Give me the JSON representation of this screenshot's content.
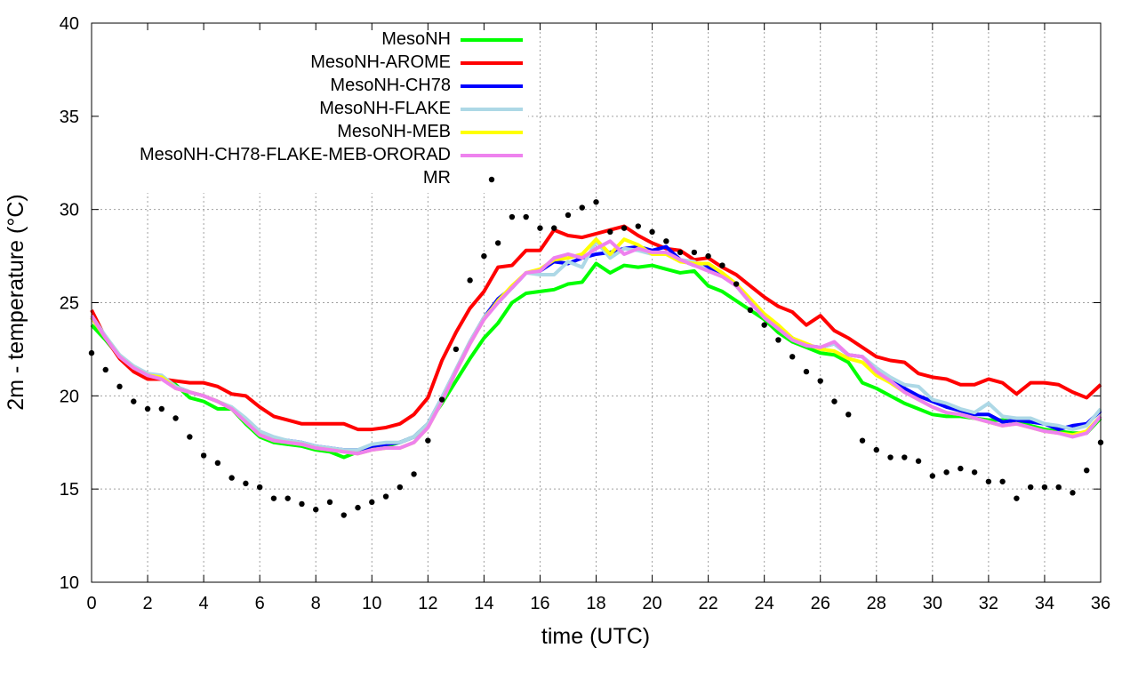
{
  "chart_data": {
    "type": "line",
    "title": "",
    "xlabel": "time (UTC)",
    "ylabel": "2m - temperature (°C)",
    "xlim": [
      0,
      36
    ],
    "ylim": [
      10,
      40
    ],
    "xticks": [
      0,
      2,
      4,
      6,
      8,
      10,
      12,
      14,
      16,
      18,
      20,
      22,
      24,
      26,
      28,
      30,
      32,
      34,
      36
    ],
    "yticks": [
      10,
      15,
      20,
      25,
      30,
      35,
      40
    ],
    "grid": true,
    "legend_position": "top-left",
    "x": [
      0,
      0.5,
      1,
      1.5,
      2,
      2.5,
      3,
      3.5,
      4,
      4.5,
      5,
      5.5,
      6,
      6.5,
      7,
      7.5,
      8,
      8.5,
      9,
      9.5,
      10,
      10.5,
      11,
      11.5,
      12,
      12.5,
      13,
      13.5,
      14,
      14.5,
      15,
      15.5,
      16,
      16.5,
      17,
      17.5,
      18,
      18.5,
      19,
      19.5,
      20,
      20.5,
      21,
      21.5,
      22,
      22.5,
      23,
      23.5,
      24,
      24.5,
      25,
      25.5,
      26,
      26.5,
      27,
      27.5,
      28,
      28.5,
      29,
      29.5,
      30,
      30.5,
      31,
      31.5,
      32,
      32.5,
      33,
      33.5,
      34,
      34.5,
      35,
      35.5,
      36
    ],
    "series": [
      {
        "name": "MesoNH",
        "color": "#00ff00",
        "style": "line",
        "values": [
          23.8,
          23.0,
          22.1,
          21.5,
          21.1,
          21.0,
          20.6,
          19.9,
          19.7,
          19.3,
          19.3,
          18.5,
          17.8,
          17.5,
          17.4,
          17.3,
          17.1,
          17.0,
          16.7,
          17.0,
          17.2,
          17.3,
          17.5,
          17.8,
          18.5,
          19.6,
          20.8,
          22.0,
          23.1,
          23.9,
          25.0,
          25.5,
          25.6,
          25.7,
          26.0,
          26.1,
          27.1,
          26.6,
          27.0,
          26.9,
          27.0,
          26.8,
          26.6,
          26.7,
          25.9,
          25.6,
          25.1,
          24.6,
          24.1,
          23.4,
          22.9,
          22.6,
          22.3,
          22.2,
          21.8,
          20.7,
          20.4,
          20.0,
          19.6,
          19.3,
          19.0,
          18.9,
          18.9,
          18.8,
          18.7,
          18.7,
          18.6,
          18.4,
          18.2,
          18.1,
          18.0,
          18.0,
          18.8
        ]
      },
      {
        "name": "MesoNH-AROME",
        "color": "#ff0000",
        "style": "line",
        "values": [
          24.6,
          23.1,
          22.0,
          21.3,
          20.9,
          20.9,
          20.8,
          20.7,
          20.7,
          20.5,
          20.1,
          20.0,
          19.4,
          18.9,
          18.7,
          18.5,
          18.5,
          18.5,
          18.5,
          18.2,
          18.2,
          18.3,
          18.5,
          19.0,
          19.9,
          21.9,
          23.4,
          24.7,
          25.6,
          26.9,
          27.0,
          27.8,
          27.8,
          28.9,
          28.6,
          28.5,
          28.7,
          28.9,
          29.1,
          28.6,
          28.2,
          27.9,
          27.8,
          27.3,
          27.4,
          26.9,
          26.5,
          25.9,
          25.3,
          24.8,
          24.5,
          23.8,
          24.3,
          23.5,
          23.1,
          22.6,
          22.1,
          21.9,
          21.8,
          21.2,
          21.0,
          20.9,
          20.6,
          20.6,
          20.9,
          20.7,
          20.1,
          20.7,
          20.7,
          20.6,
          20.2,
          19.9,
          20.6
        ]
      },
      {
        "name": "MesoNH-CH78",
        "color": "#0000ff",
        "style": "line",
        "values": [
          24.2,
          23.1,
          22.1,
          21.5,
          21.1,
          21.0,
          20.5,
          20.2,
          20.0,
          19.7,
          19.3,
          18.7,
          18.0,
          17.7,
          17.6,
          17.5,
          17.3,
          17.2,
          17.1,
          17.1,
          17.3,
          17.4,
          17.5,
          17.8,
          18.5,
          19.9,
          21.4,
          22.9,
          24.2,
          25.2,
          25.8,
          26.6,
          26.7,
          27.2,
          27.1,
          27.4,
          27.6,
          27.7,
          27.9,
          28.0,
          27.8,
          28.0,
          27.3,
          27.0,
          26.9,
          26.5,
          25.9,
          25.1,
          24.3,
          23.7,
          23.1,
          22.7,
          22.6,
          22.8,
          22.2,
          22.1,
          21.4,
          20.9,
          20.4,
          20.0,
          19.7,
          19.4,
          19.2,
          19.0,
          19.0,
          18.6,
          18.7,
          18.6,
          18.5,
          18.2,
          18.4,
          18.5,
          19.2
        ]
      },
      {
        "name": "MesoNH-FLAKE",
        "color": "#add8e6",
        "style": "line",
        "values": [
          24.3,
          23.2,
          22.2,
          21.6,
          21.2,
          21.1,
          20.5,
          20.2,
          20.0,
          19.7,
          19.4,
          18.8,
          18.1,
          17.8,
          17.6,
          17.5,
          17.3,
          17.2,
          17.1,
          17.1,
          17.4,
          17.5,
          17.5,
          17.8,
          18.5,
          19.9,
          21.4,
          22.9,
          24.2,
          25.0,
          25.8,
          26.6,
          26.5,
          26.5,
          27.2,
          26.9,
          28.3,
          27.4,
          27.9,
          27.8,
          27.6,
          27.6,
          27.3,
          27.2,
          26.7,
          26.4,
          25.9,
          25.0,
          24.2,
          23.6,
          23.0,
          22.7,
          22.6,
          22.8,
          22.2,
          22.1,
          21.5,
          21.0,
          20.6,
          20.5,
          19.8,
          19.6,
          19.3,
          19.1,
          19.6,
          18.9,
          18.8,
          18.8,
          18.5,
          18.4,
          18.2,
          18.4,
          19.3
        ]
      },
      {
        "name": "MesoNH-MEB",
        "color": "#ffff00",
        "style": "line",
        "values": [
          24.2,
          23.1,
          22.1,
          21.5,
          21.1,
          21.0,
          20.4,
          20.2,
          20.0,
          19.7,
          19.3,
          18.6,
          17.9,
          17.6,
          17.5,
          17.4,
          17.2,
          17.1,
          17.0,
          16.9,
          17.1,
          17.2,
          17.2,
          17.5,
          18.3,
          19.7,
          21.3,
          22.8,
          24.1,
          25.1,
          25.9,
          26.6,
          26.8,
          27.3,
          27.4,
          27.6,
          28.4,
          27.6,
          28.4,
          28.1,
          27.6,
          27.6,
          27.2,
          27.1,
          27.1,
          26.6,
          26.0,
          25.2,
          24.4,
          23.8,
          23.1,
          22.8,
          22.5,
          22.4,
          22.0,
          21.8,
          21.1,
          20.7,
          20.2,
          19.8,
          19.4,
          19.1,
          19.0,
          18.8,
          18.6,
          18.4,
          18.5,
          18.3,
          18.1,
          18.0,
          17.9,
          18.1,
          18.9
        ]
      },
      {
        "name": "MesoNH-CH78-FLAKE-MEB-ORORAD",
        "color": "#ee82ee",
        "style": "line",
        "values": [
          24.3,
          23.1,
          22.1,
          21.5,
          21.1,
          20.9,
          20.4,
          20.2,
          20.0,
          19.7,
          19.3,
          18.6,
          17.9,
          17.6,
          17.5,
          17.4,
          17.2,
          17.1,
          17.0,
          16.9,
          17.1,
          17.2,
          17.2,
          17.5,
          18.3,
          19.7,
          21.3,
          22.8,
          24.1,
          25.0,
          25.8,
          26.6,
          26.7,
          27.4,
          27.6,
          27.4,
          27.9,
          28.3,
          27.6,
          27.9,
          27.7,
          27.7,
          27.3,
          27.0,
          26.7,
          26.4,
          25.9,
          25.0,
          24.2,
          23.6,
          23.0,
          22.7,
          22.6,
          22.9,
          22.2,
          22.1,
          21.3,
          20.8,
          20.2,
          19.8,
          19.4,
          19.1,
          19.0,
          18.8,
          18.6,
          18.4,
          18.5,
          18.3,
          18.1,
          18.0,
          17.8,
          18.0,
          18.9
        ]
      },
      {
        "name": "MR",
        "color": "#000000",
        "style": "points",
        "values": [
          22.3,
          21.4,
          20.5,
          19.7,
          19.3,
          19.3,
          18.8,
          17.8,
          16.8,
          16.4,
          15.6,
          15.3,
          15.1,
          14.5,
          14.5,
          14.2,
          13.9,
          14.3,
          13.6,
          14.0,
          14.3,
          14.6,
          15.1,
          15.8,
          17.6,
          19.8,
          22.5,
          26.2,
          27.5,
          28.2,
          29.6,
          29.6,
          29.0,
          29.0,
          29.7,
          30.1,
          30.4,
          28.8,
          29.0,
          29.1,
          28.8,
          28.3,
          27.7,
          27.7,
          27.5,
          27.0,
          26.0,
          24.6,
          23.8,
          23.0,
          22.1,
          21.3,
          20.8,
          19.7,
          19.0,
          17.6,
          17.1,
          16.7,
          16.7,
          16.5,
          15.7,
          15.9,
          16.1,
          15.9,
          15.4,
          15.4,
          14.5,
          15.1,
          15.1,
          15.1,
          14.8,
          16.0,
          17.5
        ]
      }
    ]
  }
}
